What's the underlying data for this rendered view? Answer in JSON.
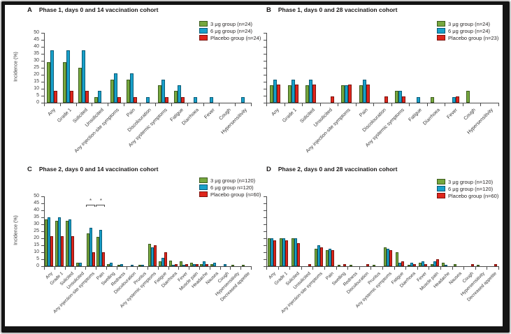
{
  "colors": {
    "bar_green": "#76a73e",
    "bar_green_border": "#3c5c1d",
    "bar_blue": "#18a0c9",
    "bar_blue_border": "#0a5b77",
    "bar_red": "#df261c",
    "bar_red_border": "#7e130e",
    "axis": "#4b4b4b",
    "text": "#262323",
    "frame": "#141414"
  },
  "chart_data": [
    {
      "type": "bar",
      "panel_letter": "A",
      "title": "Phase 1, days 0 and 14 vaccination cohort",
      "ylabel": "Incidence (%)",
      "ylim": [
        0,
        50
      ],
      "ytick_step": 5,
      "show_ytick_labels": true,
      "legend_position": "top-right",
      "grid": false,
      "categories": [
        "Any",
        "Grade 1",
        "Solicited",
        "Unsolicited",
        "Any injection-site symptoms",
        "Pain",
        "Discolouration",
        "Any systemic symptoms",
        "Fatigue",
        "Diarrhoea",
        "Fever",
        "Cough",
        "Hypersensitivity"
      ],
      "series": [
        {
          "name": "3 μg group (n=24)",
          "color": "green",
          "values": [
            29.2,
            29.2,
            25.0,
            4.2,
            16.7,
            16.7,
            0,
            12.5,
            8.3,
            0,
            0,
            0,
            0
          ]
        },
        {
          "name": "6 μg group (n=24)",
          "color": "blue",
          "values": [
            37.5,
            37.5,
            37.5,
            8.3,
            20.8,
            20.8,
            4.2,
            16.7,
            12.5,
            4.2,
            4.2,
            0,
            4.2
          ]
        },
        {
          "name": "Placebo group (n=24)",
          "color": "red",
          "values": [
            8.3,
            8.3,
            8.3,
            0,
            4.2,
            4.2,
            0,
            4.2,
            4.2,
            0,
            0,
            0,
            0
          ]
        }
      ],
      "annotations": []
    },
    {
      "type": "bar",
      "panel_letter": "B",
      "title": "Phase 1, days 0 and 28 vaccination cohort",
      "ylabel": "",
      "ylim": [
        0,
        50
      ],
      "ytick_step": 5,
      "show_ytick_labels": false,
      "legend_position": "top-right",
      "grid": false,
      "categories": [
        "Any",
        "Grade 1",
        "Solicited",
        "Unsolicited",
        "Any injection-site symptoms",
        "Pain",
        "Discolouration",
        "Any systemic symptoms",
        "Fatigue",
        "Diarrhoea",
        "Fever",
        "Cough",
        "Hypersensitivity"
      ],
      "series": [
        {
          "name": "3 μg group (n=24)",
          "color": "green",
          "values": [
            12.5,
            12.5,
            12.5,
            0,
            12.5,
            12.5,
            0,
            8.3,
            0,
            4.2,
            0,
            8.3,
            0
          ]
        },
        {
          "name": "6 μg group (n=24)",
          "color": "blue",
          "values": [
            16.7,
            16.7,
            16.7,
            0,
            12.5,
            16.7,
            0,
            8.3,
            4.2,
            0,
            4.2,
            0,
            0
          ]
        },
        {
          "name": "Placebo group (n=23)",
          "color": "red",
          "values": [
            13.0,
            13.0,
            13.0,
            4.3,
            13.0,
            13.0,
            4.3,
            4.3,
            0,
            0,
            4.3,
            0,
            0
          ]
        }
      ],
      "annotations": []
    },
    {
      "type": "bar",
      "panel_letter": "C",
      "title": "Phase 2, days 0 and 14 vaccination cohort",
      "ylabel": "Incidence (%)",
      "ylim": [
        0,
        50
      ],
      "ytick_step": 5,
      "show_ytick_labels": true,
      "legend_position": "top-right",
      "grid": false,
      "categories": [
        "Any",
        "Grade 1",
        "Solicited",
        "Unsolicited",
        "Any injection-site symptoms",
        "Pain",
        "Swelling",
        "Redness",
        "Discolouration",
        "Pruritus",
        "Any systemic symptoms",
        "Fatigue",
        "Diarrhoea",
        "Fever",
        "Muscle pain",
        "Headache",
        "Nausea",
        "Cough",
        "Hypersensitivity",
        "Decreased appetite"
      ],
      "series": [
        {
          "name": "3 μg group (n=120)",
          "color": "green",
          "values": [
            33.3,
            32.5,
            32.5,
            2.5,
            23.3,
            20.8,
            1.7,
            0.8,
            0,
            0.8,
            15.8,
            3.3,
            4.2,
            3.3,
            2.5,
            1.7,
            1.7,
            0,
            0.8,
            0.8
          ]
        },
        {
          "name": "6 μg group n=120)",
          "color": "blue",
          "values": [
            35.0,
            35.0,
            33.3,
            2.5,
            27.5,
            25.8,
            2.5,
            1.7,
            0.8,
            0.8,
            13.3,
            5.8,
            0.8,
            0.8,
            1.7,
            3.3,
            2.5,
            1.7,
            0,
            0
          ]
        },
        {
          "name": "Placebo group (n=60)",
          "color": "red",
          "values": [
            21.7,
            21.7,
            21.7,
            0,
            10.0,
            10.0,
            0,
            0,
            0,
            0,
            15.0,
            10.0,
            1.7,
            1.7,
            1.7,
            1.7,
            0,
            0,
            0,
            0
          ]
        }
      ],
      "annotations": [
        {
          "category": "Any injection-site symptoms",
          "category_index": 4,
          "symbol": "*"
        },
        {
          "category": "Pain",
          "category_index": 5,
          "symbol": "*"
        }
      ]
    },
    {
      "type": "bar",
      "panel_letter": "D",
      "title": "Phase 2, days 0 and 28 vaccination cohort",
      "ylabel": "",
      "ylim": [
        0,
        50
      ],
      "ytick_step": 5,
      "show_ytick_labels": false,
      "legend_position": "top-right",
      "grid": false,
      "categories": [
        "Any",
        "Grade 1",
        "Solicited",
        "Unsolicited",
        "Any injection-site symptoms",
        "Pain",
        "Swelling",
        "Redness",
        "Discolouration",
        "Pruritus",
        "Any systemic symptoms",
        "Fatigue",
        "Diarrhoea",
        "Fever",
        "Muscle pain",
        "Headache",
        "Nausea",
        "Cough",
        "Hypersensitivity",
        "Decreased appetite"
      ],
      "series": [
        {
          "name": "3 μg group (n=120)",
          "color": "green",
          "values": [
            20.0,
            20.0,
            20.0,
            0,
            12.5,
            11.7,
            0.8,
            0.8,
            0,
            0.8,
            13.3,
            10.0,
            0.8,
            2.5,
            1.7,
            2.5,
            1.7,
            0,
            0.8,
            0
          ]
        },
        {
          "name": "6 μg group (n=120)",
          "color": "blue",
          "values": [
            20.0,
            20.0,
            20.0,
            0,
            15.0,
            12.5,
            0,
            0,
            0,
            0,
            12.5,
            2.5,
            2.5,
            3.3,
            3.3,
            0.8,
            0,
            0,
            0,
            0
          ]
        },
        {
          "name": "Placebo group (n=60)",
          "color": "red",
          "values": [
            18.3,
            18.3,
            16.7,
            1.7,
            13.3,
            11.7,
            1.7,
            0,
            1.7,
            0,
            11.7,
            3.3,
            1.7,
            1.7,
            5.0,
            0,
            0,
            1.7,
            0,
            1.7
          ]
        }
      ],
      "annotations": []
    }
  ]
}
